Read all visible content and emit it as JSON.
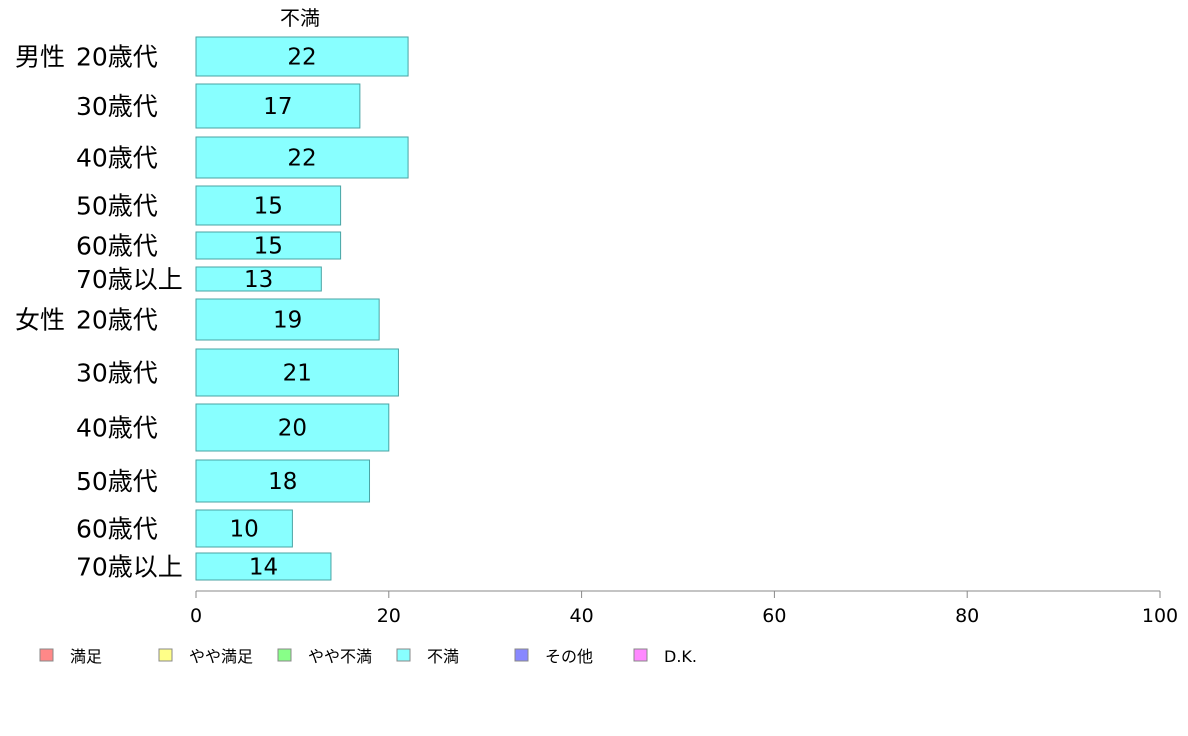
{
  "chart_data": {
    "type": "bar",
    "orientation": "horizontal",
    "series_title": "不満",
    "groups": [
      {
        "name": "男性",
        "rows": [
          {
            "label": "20歳代",
            "value": 22
          },
          {
            "label": "30歳代",
            "value": 17
          },
          {
            "label": "40歳代",
            "value": 22
          },
          {
            "label": "50歳代",
            "value": 15
          },
          {
            "label": "60歳代",
            "value": 15
          },
          {
            "label": "70歳以上",
            "value": 13
          }
        ]
      },
      {
        "name": "女性",
        "rows": [
          {
            "label": "20歳代",
            "value": 19
          },
          {
            "label": "30歳代",
            "value": 21
          },
          {
            "label": "40歳代",
            "value": 20
          },
          {
            "label": "50歳代",
            "value": 18
          },
          {
            "label": "60歳代",
            "value": 10
          },
          {
            "label": "70歳以上",
            "value": 14
          }
        ]
      }
    ],
    "xlim": [
      0,
      100
    ],
    "xticks": [
      0,
      20,
      40,
      60,
      80,
      100
    ],
    "grid": false,
    "legend_position": "bottom",
    "legend": [
      {
        "name": "満足",
        "color": "#ff8888"
      },
      {
        "name": "やや満足",
        "color": "#ffff88"
      },
      {
        "name": "やや不満",
        "color": "#88ff88"
      },
      {
        "name": "不満",
        "color": "#88ffff"
      },
      {
        "name": "その他",
        "color": "#8888ff"
      },
      {
        "name": "D.K.",
        "color": "#ff88ff"
      }
    ],
    "bar_color": "#88ffff",
    "bar_border_color": "#4aa3a3"
  }
}
